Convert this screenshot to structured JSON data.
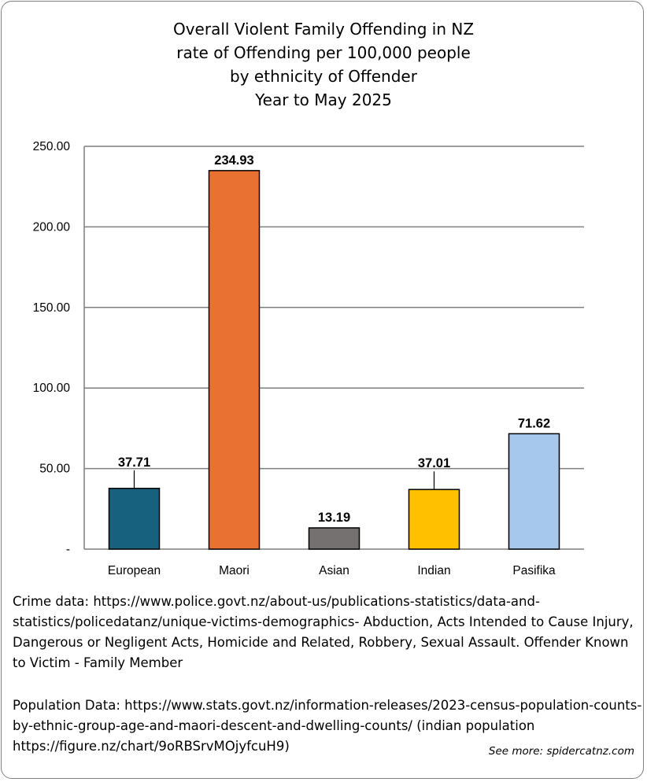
{
  "title_lines": [
    "Overall Violent Family Offending in NZ",
    "rate of Offending per 100,000 people",
    "by ethnicity of Offender",
    "Year to May 2025"
  ],
  "chart_data": {
    "type": "bar",
    "categories": [
      "European",
      "Maori",
      "Asian",
      "Indian",
      "Pasifika"
    ],
    "values": [
      37.71,
      234.93,
      13.19,
      37.01,
      71.62
    ],
    "data_labels": [
      "37.71",
      "234.93",
      "13.19",
      "37.01",
      "71.62"
    ],
    "colors": [
      "#17607e",
      "#e97132",
      "#767171",
      "#ffc000",
      "#a6c8ec"
    ],
    "ylim": [
      0,
      250
    ],
    "yticks": [
      0,
      50,
      100,
      150,
      200,
      250
    ],
    "ytick_labels": [
      "-",
      "50.00",
      "100.00",
      "150.00",
      "200.00",
      "250.00"
    ],
    "grid": true,
    "legend": false
  },
  "notes": {
    "crime_data": "Crime data: https://www.police.govt.nz/about-us/publications-statistics/data-and-statistics/policedatanz/unique-victims-demographics-  Abduction, Acts Intended to Cause Injury, Dangerous or Negligent Acts, Homicide and Related, Robbery, Sexual Assault. Offender Known to Victim - Family Member",
    "population_data": "Population Data: https://www.stats.govt.nz/information-releases/2023-census-population-counts-by-ethnic-group-age-and-maori-descent-and-dwelling-counts/ (indian population https://figure.nz/chart/9oRBSrvMOjyfcuH9)"
  },
  "credit": "See more: spidercatnz.com"
}
